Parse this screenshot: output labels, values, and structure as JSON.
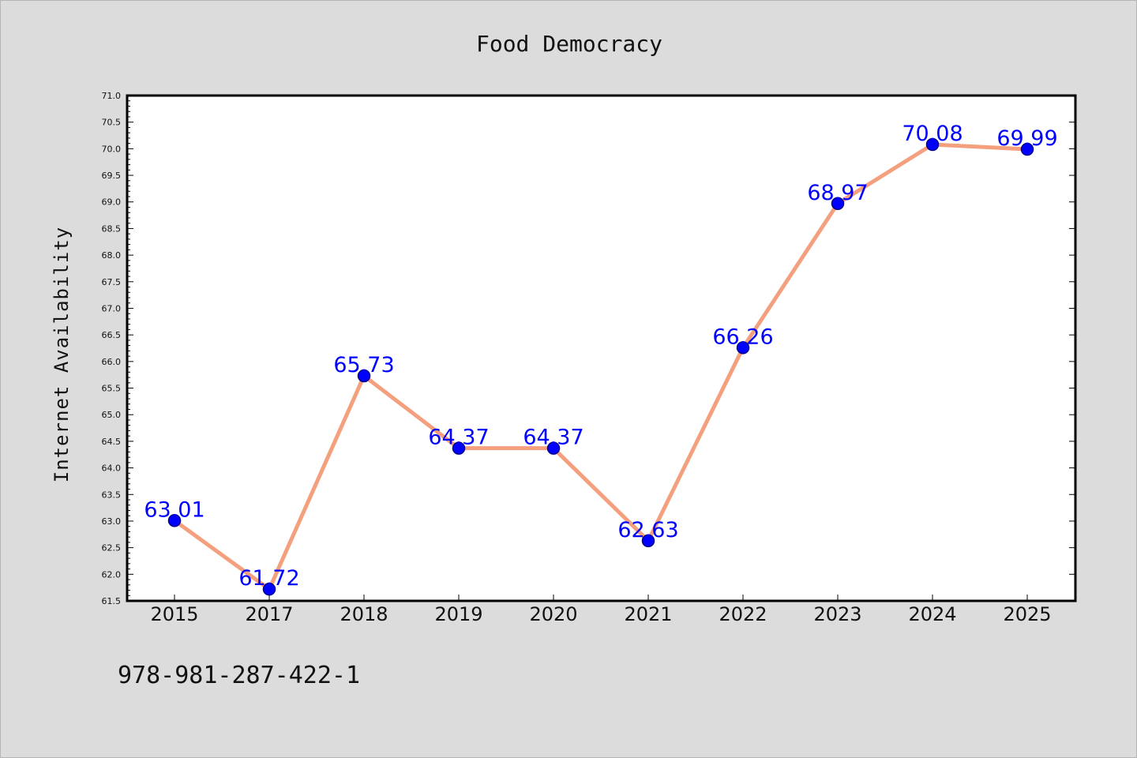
{
  "chart_data": {
    "type": "line",
    "title": "Food Democracy",
    "xlabel": "",
    "ylabel": "Internet Availability",
    "categories": [
      "2015",
      "2017",
      "2018",
      "2019",
      "2020",
      "2021",
      "2022",
      "2023",
      "2024",
      "2025"
    ],
    "series": [
      {
        "values": [
          63.01,
          61.72,
          65.73,
          64.37,
          64.37,
          62.63,
          66.26,
          68.97,
          70.08,
          69.99
        ],
        "data_labels": [
          "63.01",
          "61.72",
          "65.73",
          "64.37",
          "64.37",
          "62.63",
          "66.26",
          "68.97",
          "70.08",
          "69.99"
        ]
      }
    ],
    "ylim": [
      61.5,
      71.0
    ],
    "yticks": [
      "61.5",
      "62.0",
      "62.5",
      "63.0",
      "63.5",
      "64.0",
      "64.5",
      "65.0",
      "65.5",
      "66.0",
      "66.5",
      "67.0",
      "67.5",
      "68.0",
      "68.5",
      "69.0",
      "69.5",
      "70.0",
      "70.5",
      "71.0"
    ],
    "grid": false,
    "legend": "none",
    "colors": {
      "line": "#f4a07e",
      "marker": "#0000ff",
      "marker_edge": "#00008b",
      "data_label": "#0000ff",
      "background": "#dcdcdc",
      "plot_area": "#ffffff"
    }
  },
  "footer": {
    "isbn": "978-981-287-422-1"
  }
}
